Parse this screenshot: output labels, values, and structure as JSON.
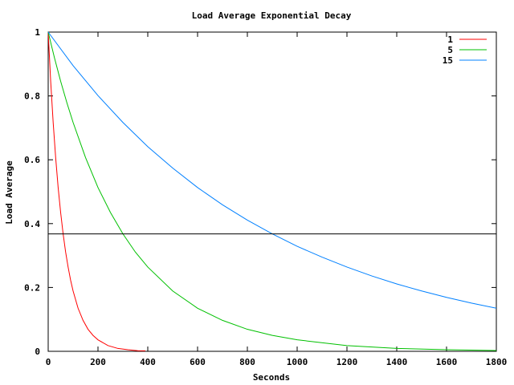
{
  "chart_data": {
    "type": "line",
    "title": "Load Average Exponential Decay",
    "xlabel": "Seconds",
    "ylabel": "Load Average",
    "xlim": [
      0,
      1800
    ],
    "ylim": [
      0,
      1
    ],
    "x_ticks": [
      "0",
      "200",
      "400",
      "600",
      "800",
      "1000",
      "1200",
      "1400",
      "1600",
      "1800"
    ],
    "y_ticks": [
      "0",
      "0.2",
      "0.4",
      "0.6",
      "0.8",
      "1"
    ],
    "grid": false,
    "legend_position": "top-right",
    "series": [
      {
        "name": "1",
        "color": "#ff0000",
        "x": [
          0,
          10,
          20,
          30,
          40,
          50,
          60,
          70,
          80,
          90,
          100,
          120,
          140,
          160,
          180,
          200,
          240,
          280,
          320,
          360,
          390
        ],
        "y": [
          1.0,
          0.846,
          0.717,
          0.607,
          0.513,
          0.435,
          0.368,
          0.311,
          0.264,
          0.223,
          0.189,
          0.135,
          0.097,
          0.069,
          0.05,
          0.036,
          0.018,
          0.009,
          0.005,
          0.002,
          0.0015
        ]
      },
      {
        "name": "5",
        "color": "#00c000",
        "x": [
          0,
          25,
          50,
          75,
          100,
          150,
          200,
          250,
          300,
          350,
          400,
          500,
          600,
          700,
          800,
          900,
          1000,
          1200,
          1400,
          1600,
          1800
        ],
        "y": [
          1.0,
          0.92,
          0.846,
          0.779,
          0.717,
          0.607,
          0.513,
          0.435,
          0.368,
          0.311,
          0.264,
          0.189,
          0.135,
          0.097,
          0.069,
          0.05,
          0.036,
          0.018,
          0.009,
          0.005,
          0.0025
        ]
      },
      {
        "name": "15",
        "color": "#0080ff",
        "x": [
          0,
          100,
          200,
          300,
          400,
          500,
          600,
          700,
          800,
          900,
          1000,
          1100,
          1200,
          1300,
          1400,
          1500,
          1600,
          1700,
          1800
        ],
        "y": [
          1.0,
          0.895,
          0.801,
          0.717,
          0.641,
          0.574,
          0.513,
          0.459,
          0.411,
          0.368,
          0.329,
          0.295,
          0.264,
          0.236,
          0.211,
          0.189,
          0.169,
          0.151,
          0.135
        ]
      }
    ],
    "reference_line": {
      "y": 0.3679,
      "color": "#000000"
    }
  }
}
